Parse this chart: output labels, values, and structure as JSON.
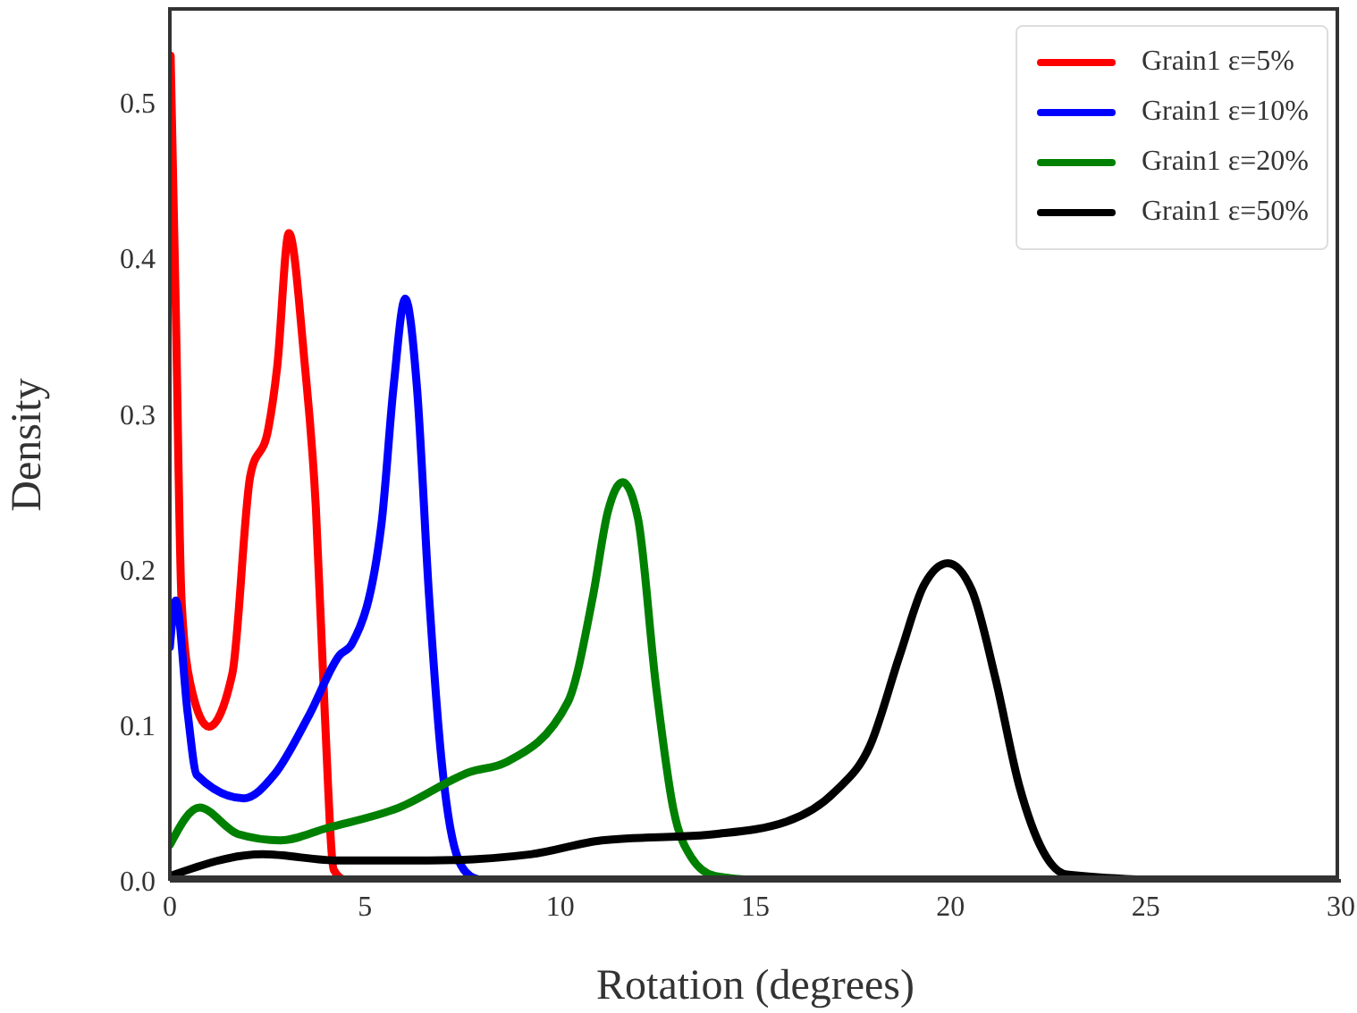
{
  "chart_data": {
    "type": "line",
    "xlabel": "Rotation (degrees)",
    "ylabel": "Density",
    "xlim": [
      0,
      30
    ],
    "xticks": [
      0,
      5,
      10,
      15,
      20,
      25,
      30
    ],
    "ylim": [
      0,
      0.56
    ],
    "yticks": [
      {
        "value": 0,
        "label": "0.0"
      },
      0.1,
      0.2,
      0.3,
      0.4,
      0.5
    ],
    "grid": false,
    "legend": "top right",
    "line_style": "solid",
    "marker": "none",
    "series": [
      {
        "name": "Grain1 ε=5%",
        "color": "#ff0000",
        "x": [
          0.02,
          0.15,
          0.3,
          0.53,
          1.0,
          1.6,
          2.06,
          2.52,
          2.75,
          3.05,
          3.44,
          3.74,
          3.97,
          4.2,
          4.5
        ],
        "values": [
          0.53,
          0.37,
          0.18,
          0.126,
          0.099,
          0.133,
          0.26,
          0.29,
          0.33,
          0.416,
          0.336,
          0.24,
          0.107,
          0.007,
          0.0
        ]
      },
      {
        "name": "Grain1 ε=10%",
        "color": "#0000ff",
        "x": [
          0.0,
          0.15,
          0.46,
          0.69,
          1.9,
          2.67,
          3.58,
          4.35,
          4.66,
          5.42,
          5.73,
          6.03,
          6.33,
          6.64,
          6.95,
          7.33,
          7.7,
          8.1
        ],
        "values": [
          0.15,
          0.18,
          0.107,
          0.068,
          0.053,
          0.068,
          0.107,
          0.145,
          0.152,
          0.229,
          0.317,
          0.374,
          0.317,
          0.183,
          0.08,
          0.018,
          0.003,
          0.0
        ]
      },
      {
        "name": "Grain1 ε=20%",
        "color": "#008000",
        "x": [
          0.0,
          0.76,
          1.75,
          2.83,
          4.04,
          5.87,
          7.7,
          8.6,
          10.2,
          10.84,
          11.22,
          11.6,
          11.99,
          12.45,
          12.9,
          13.36,
          13.97,
          15.2
        ],
        "values": [
          0.023,
          0.047,
          0.03,
          0.026,
          0.034,
          0.047,
          0.07,
          0.076,
          0.115,
          0.183,
          0.237,
          0.256,
          0.233,
          0.126,
          0.046,
          0.015,
          0.003,
          0.0
        ]
      },
      {
        "name": "Grain1 ε=50%",
        "color": "#000000",
        "x": [
          0.0,
          2.37,
          4.35,
          6.64,
          9.24,
          11.07,
          13.97,
          15.8,
          17.03,
          17.94,
          18.7,
          19.32,
          19.93,
          20.54,
          21.15,
          21.76,
          22.37,
          22.98,
          25.7
        ],
        "values": [
          0.003,
          0.017,
          0.013,
          0.013,
          0.017,
          0.026,
          0.03,
          0.038,
          0.057,
          0.087,
          0.145,
          0.19,
          0.204,
          0.187,
          0.13,
          0.061,
          0.019,
          0.004,
          0.0
        ]
      }
    ]
  }
}
